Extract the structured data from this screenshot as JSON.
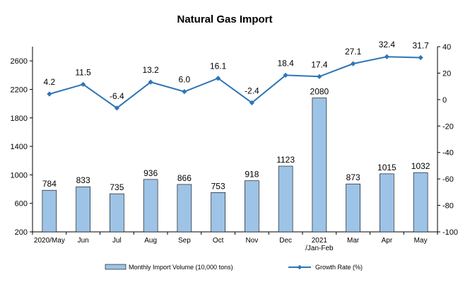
{
  "chart_data": {
    "type": "bar",
    "title": "Natural Gas Import",
    "categories": [
      "2020/May",
      "Jun",
      "Jul",
      "Aug",
      "Sep",
      "Oct",
      "Nov",
      "Dec",
      "2021\n/Jan-Feb",
      "Mar",
      "Apr",
      "May"
    ],
    "series": [
      {
        "name": "Monthly Import Volume (10,000 tons)",
        "type": "bar",
        "axis": "left",
        "color": "#9dc3e6",
        "values": [
          784,
          833,
          735,
          936,
          866,
          753,
          918,
          1123,
          2080,
          873,
          1015,
          1032
        ],
        "labels": [
          "784",
          "833",
          "735",
          "936",
          "866",
          "753",
          "918",
          "1123",
          "2080",
          "873",
          "1015",
          "1032"
        ]
      },
      {
        "name": "Growth Rate (%)",
        "type": "line",
        "axis": "right",
        "color": "#2e75b6",
        "values": [
          4.2,
          11.5,
          -6.4,
          13.2,
          6.0,
          16.1,
          -2.4,
          18.4,
          17.4,
          27.1,
          32.4,
          31.7
        ],
        "labels": [
          "4.2",
          "11.5",
          "-6.4",
          "13.2",
          "6.0",
          "16.1",
          "-2.4",
          "18.4",
          "17.4",
          "27.1",
          "32.4",
          "31.7"
        ]
      }
    ],
    "y_left": {
      "min": 200,
      "max": 2800,
      "ticks": [
        "200",
        "600",
        "1000",
        "1400",
        "1800",
        "2200",
        "2600"
      ]
    },
    "y_right": {
      "min": -100,
      "max": 40,
      "ticks": [
        "-100",
        "-80",
        "-60",
        "-40",
        "-20",
        "0",
        "20",
        "40"
      ]
    },
    "legend": {
      "position": "bottom",
      "items": [
        {
          "label": "Monthly Import Volume (10,000 tons)",
          "kind": "bar",
          "color": "#9dc3e6"
        },
        {
          "label": "Growth Rate (%)",
          "kind": "line",
          "color": "#2e75b6"
        }
      ]
    },
    "grid": false
  }
}
